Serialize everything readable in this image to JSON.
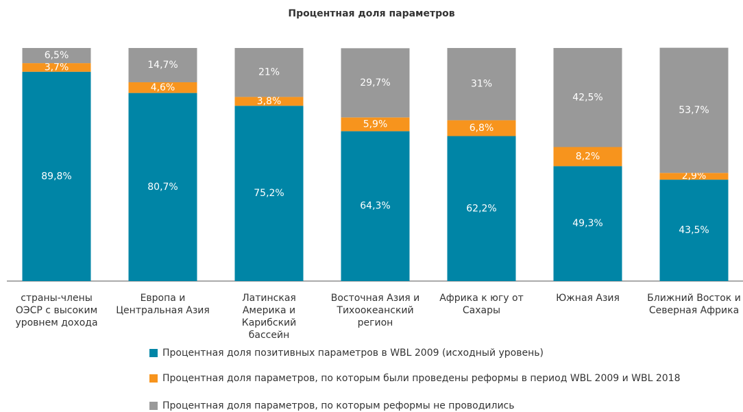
{
  "chart_data": {
    "type": "stacked_bar",
    "title": "Процентная доля параметров",
    "categories": [
      "страны-члены ОЭСР с высоким уровнем дохода",
      "Европа и Центральная Азия",
      "Латинская Америка и Карибский бассейн",
      "Восточная Азия и Тихоокеанский регион",
      "Африка к югу от Сахары",
      "Южная Азия",
      "Ближний Восток и Северная Африка"
    ],
    "series": [
      {
        "name": "Процентная доля позитивных параметров в WBL 2009 (исходный уровень)",
        "color": "#0085a6",
        "values": [
          89.8,
          80.7,
          75.2,
          64.3,
          62.2,
          49.3,
          43.5
        ],
        "value_labels": [
          "89,8%",
          "80,7%",
          "75,2%",
          "64,3%",
          "62,2%",
          "49,3%",
          "43,5%"
        ]
      },
      {
        "name": "Процентная доля параметров, по которым были проведены реформы в период WBL 2009 и WBL 2018",
        "color": "#f7941d",
        "values": [
          3.7,
          4.6,
          3.8,
          5.9,
          6.8,
          8.2,
          2.9
        ],
        "value_labels": [
          "3,7%",
          "4,6%",
          "3,8%",
          "5,9%",
          "6,8%",
          "8,2%",
          "2,9%"
        ]
      },
      {
        "name": "Процентная доля параметров, по которым реформы не проводились",
        "color": "#999999",
        "values": [
          6.5,
          14.7,
          21,
          29.7,
          31,
          42.5,
          53.7
        ],
        "value_labels": [
          "6,5%",
          "14,7%",
          "21%",
          "29,7%",
          "31%",
          "42,5%",
          "53,7%"
        ]
      }
    ],
    "ylim": [
      0,
      100
    ]
  }
}
